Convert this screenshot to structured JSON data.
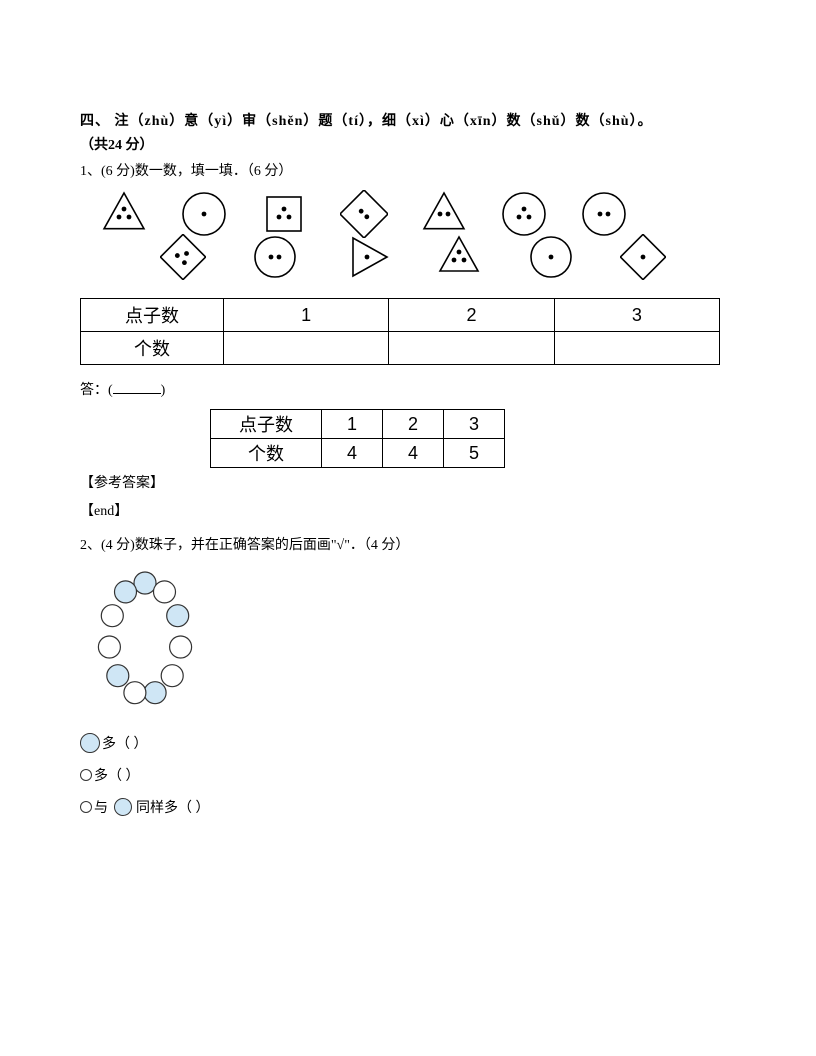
{
  "section": {
    "title": "四、 注（zhù）意（yì）审（shěn）题（tí），细（xì）心（xīn）数（shǔ）数（shù）。",
    "points": "（共24 分）"
  },
  "q1": {
    "prompt": "1、(6 分)数一数，填一填．（6 分）",
    "table": {
      "row1_label": "点子数",
      "row2_label": "个数",
      "headers": [
        "1",
        "2",
        "3"
      ]
    },
    "answer_prefix": "答：(",
    "answer_suffix": ")",
    "ref_label": "【参考答案】",
    "end_label": "【end】",
    "answer_table": {
      "row1_label": "点子数",
      "row2_label": "个数",
      "headers": [
        "1",
        "2",
        "3"
      ],
      "values": [
        "4",
        "4",
        "5"
      ]
    }
  },
  "q2": {
    "prompt": "2、(4 分)数珠子，并在正确答案的后面画\"√\"．（4 分）",
    "opt1": "多（  ）",
    "opt2": "多（  ）",
    "opt3_a": "与",
    "opt3_b": "同样多（  ）"
  },
  "shapes": {
    "row1": [
      {
        "type": "triangle",
        "dots": 3,
        "rot": 0
      },
      {
        "type": "circle",
        "dots": 1
      },
      {
        "type": "square",
        "dots": 3,
        "rot": 0
      },
      {
        "type": "square",
        "dots": 2,
        "rot": 45
      },
      {
        "type": "triangle",
        "dots": 2,
        "rot": 0
      },
      {
        "type": "circle",
        "dots": 3
      },
      {
        "type": "circle",
        "dots": 2
      }
    ],
    "row2": [
      {
        "type": "square",
        "dots": 3,
        "rot": 45
      },
      {
        "type": "circle",
        "dots": 2
      },
      {
        "type": "triangle",
        "dots": 1,
        "rot": 90
      },
      {
        "type": "triangle",
        "dots": 3,
        "rot": 0
      },
      {
        "type": "circle",
        "dots": 1
      },
      {
        "type": "square",
        "dots": 1,
        "rot": 45
      }
    ]
  },
  "beads": {
    "blue": "#cfe6f5",
    "white": "#ffffff",
    "stroke": "#333333"
  }
}
